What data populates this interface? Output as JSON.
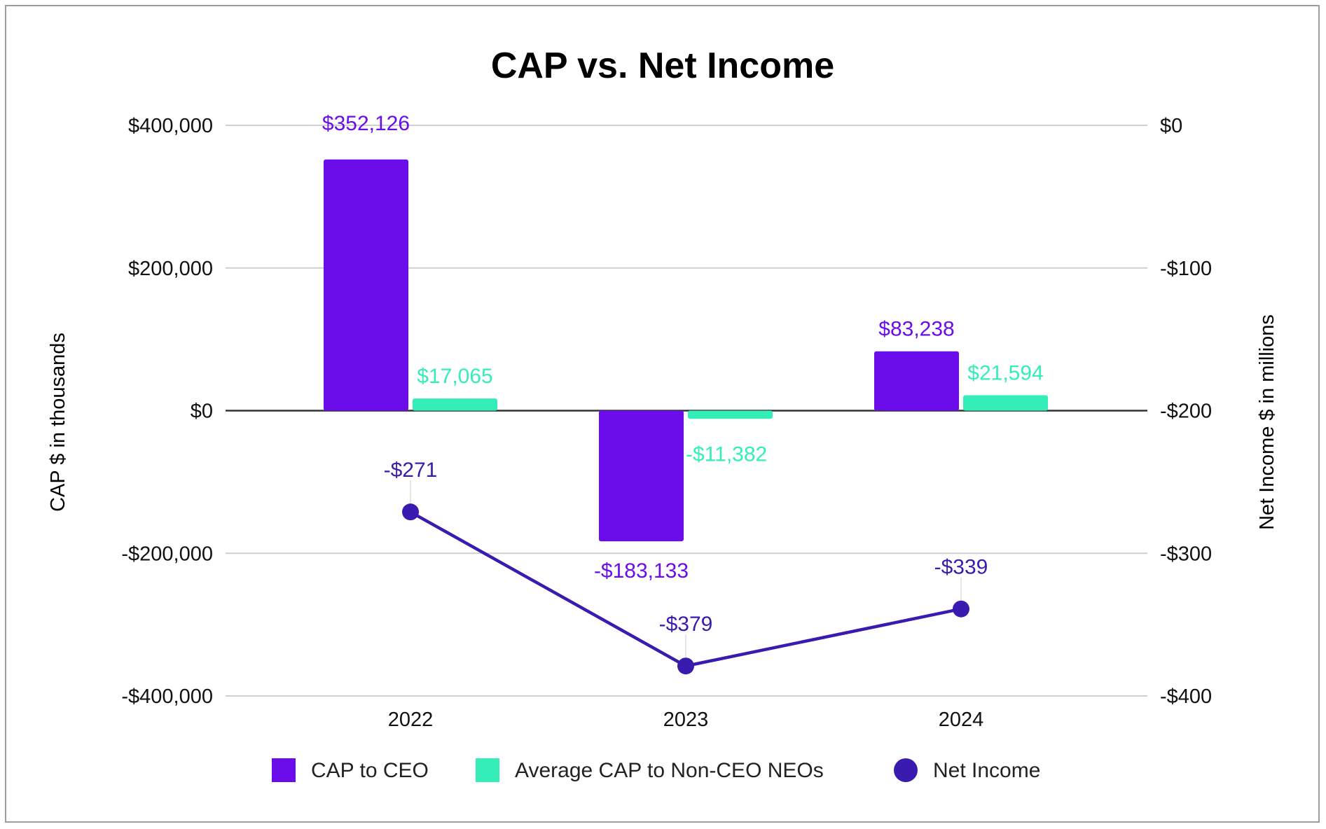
{
  "chart_data": {
    "type": "bar",
    "title": "CAP vs. Net Income",
    "categories": [
      "2022",
      "2023",
      "2024"
    ],
    "ylabel": "CAP $ in thousands",
    "y2label": "Net Income $ in millions",
    "ylim": [
      -400000,
      400000
    ],
    "y2lim": [
      -400,
      0
    ],
    "yticks": [
      400000,
      200000,
      0,
      -200000,
      -400000
    ],
    "yticklabels": [
      "$400,000",
      "$200,000",
      "$0",
      "-$200,000",
      "-$400,000"
    ],
    "y2ticks": [
      0,
      -100,
      -200,
      -300,
      -400
    ],
    "y2ticklabels": [
      "$0",
      "-$100",
      "-$200",
      "-$300",
      "-$400"
    ],
    "grid": true,
    "legend_position": "bottom",
    "series": [
      {
        "name": "CAP to CEO",
        "type": "bar",
        "axis": "left",
        "color": "#6a0dea",
        "values": [
          352126,
          -183133,
          83238
        ],
        "labels": [
          "$352,126",
          "-$183,133",
          "$83,238"
        ]
      },
      {
        "name": "Average CAP to Non-CEO NEOs",
        "type": "bar",
        "axis": "left",
        "color": "#34eeb9",
        "values": [
          17065,
          -11382,
          21594
        ],
        "labels": [
          "$17,065",
          "-$11,382",
          "$21,594"
        ]
      },
      {
        "name": "Net Income",
        "type": "line",
        "axis": "right",
        "color": "#3a1bb0",
        "values": [
          -271,
          -379,
          -339
        ],
        "labels": [
          "-$271",
          "-$379",
          "-$339"
        ]
      }
    ]
  }
}
